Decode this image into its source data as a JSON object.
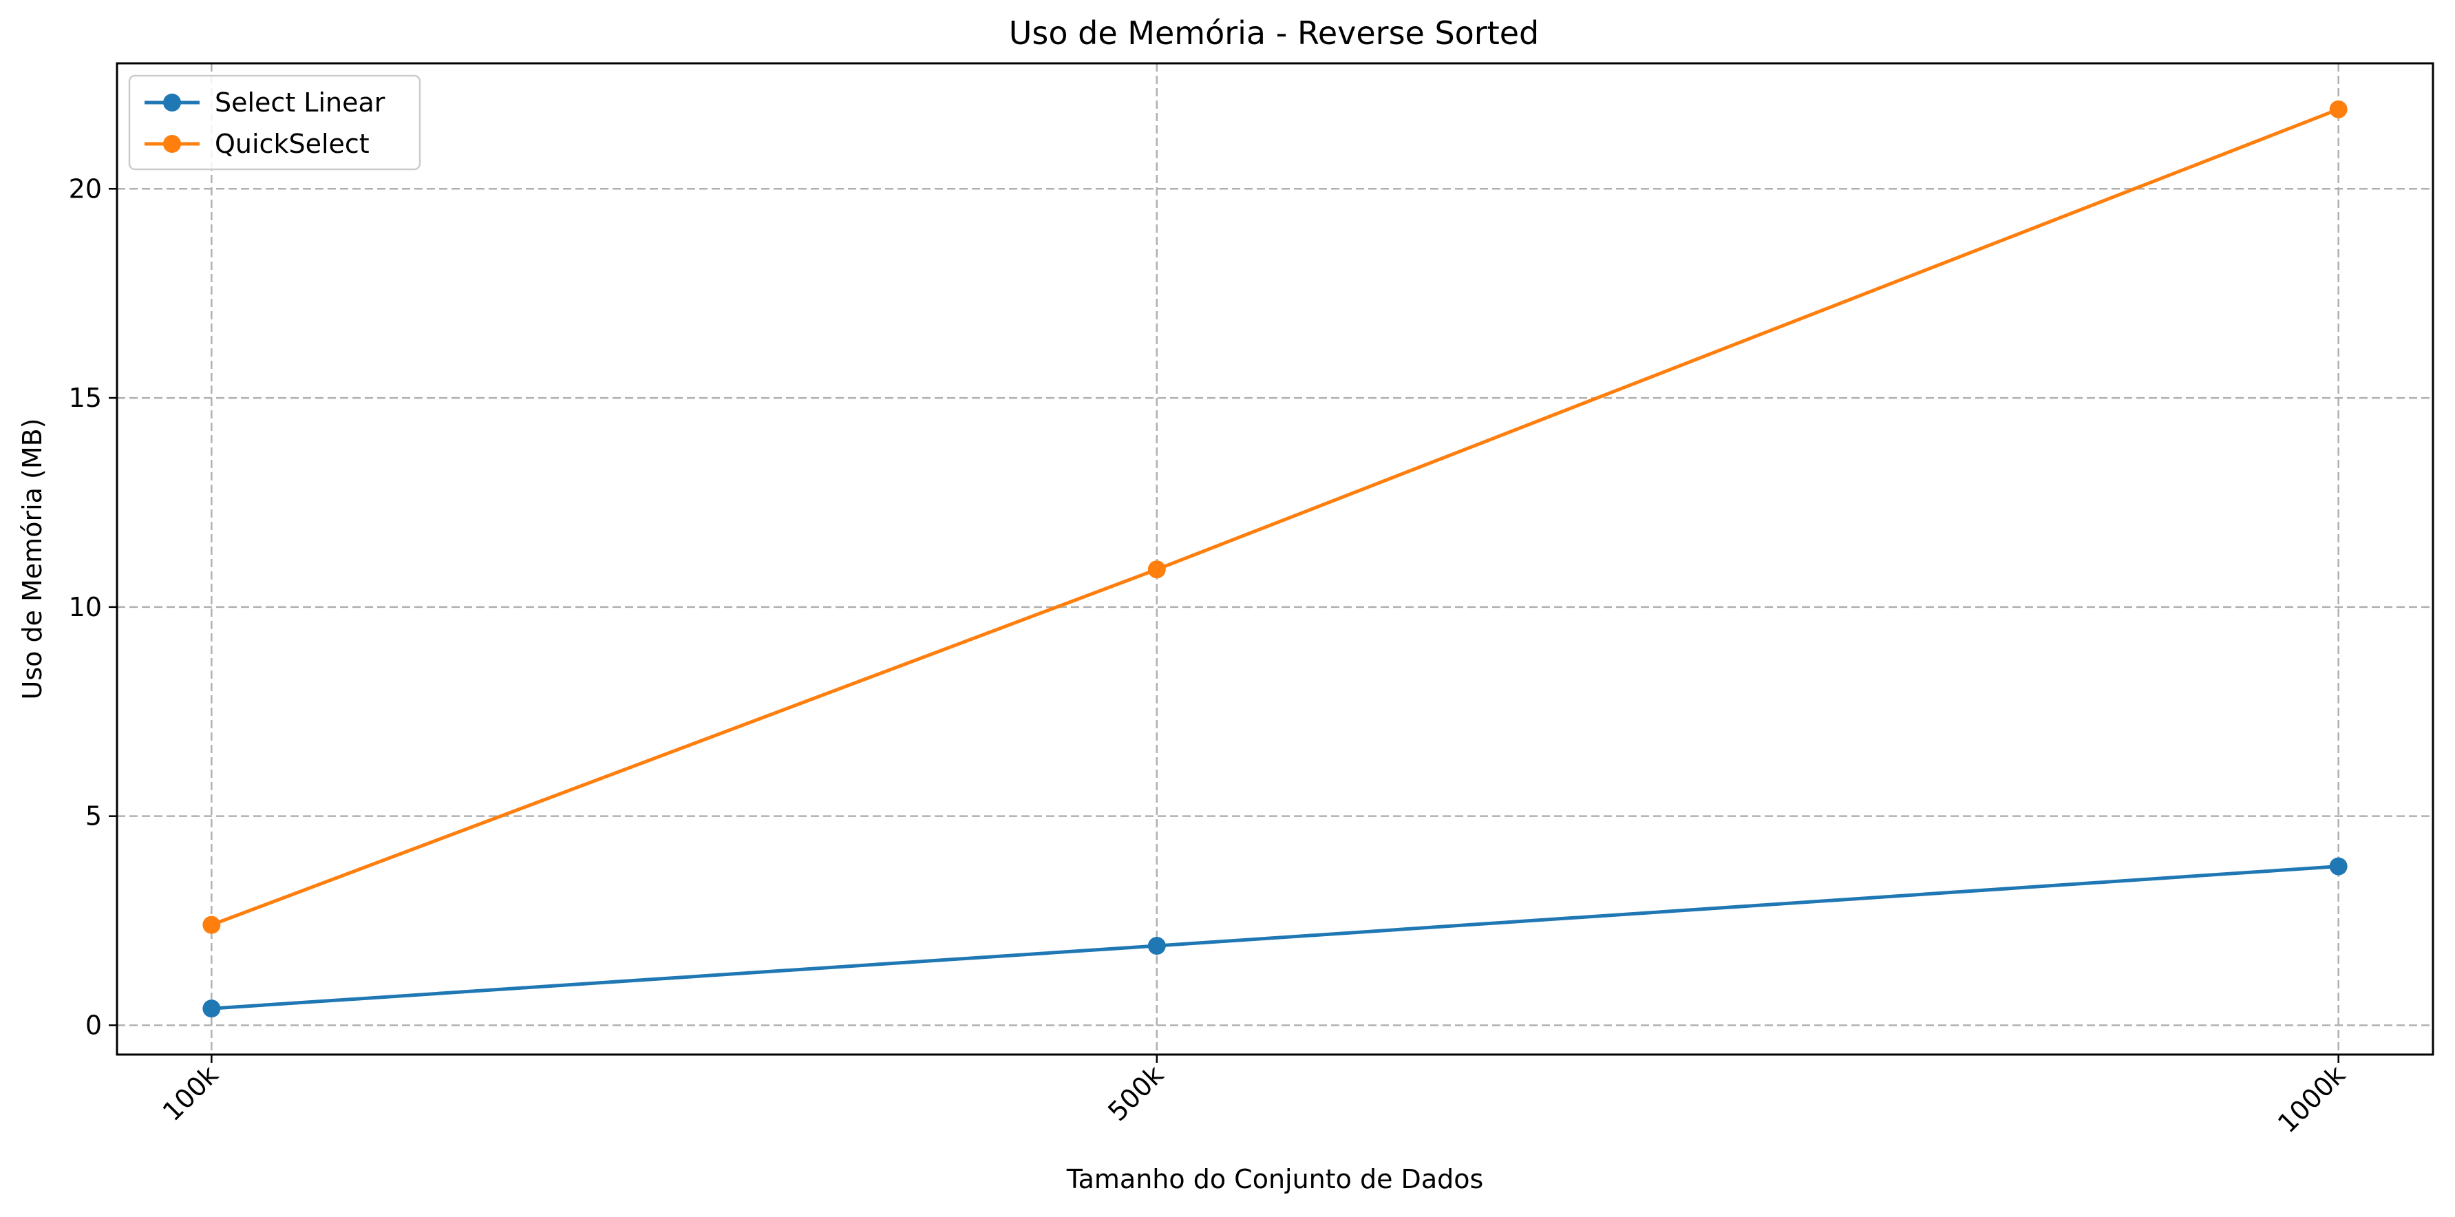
{
  "chart_data": {
    "type": "line",
    "title": "Uso de Memória - Reverse Sorted",
    "xlabel": "Tamanho do Conjunto de Dados",
    "ylabel": "Uso de Memória (MB)",
    "categories": [
      "100k",
      "500k",
      "1000k"
    ],
    "x": [
      100000,
      500000,
      1000000
    ],
    "xlim": [
      60000,
      1040000
    ],
    "ylim": [
      -0.7,
      23.0
    ],
    "y_ticks": [
      0,
      5,
      10,
      15,
      20
    ],
    "grid": true,
    "legend_position": "top-left",
    "series": [
      {
        "name": "Select Linear",
        "color": "#1f77b4",
        "values": [
          0.4,
          1.9,
          3.8
        ]
      },
      {
        "name": "QuickSelect",
        "color": "#ff7f0e",
        "values": [
          2.4,
          10.9,
          21.9
        ]
      }
    ]
  }
}
